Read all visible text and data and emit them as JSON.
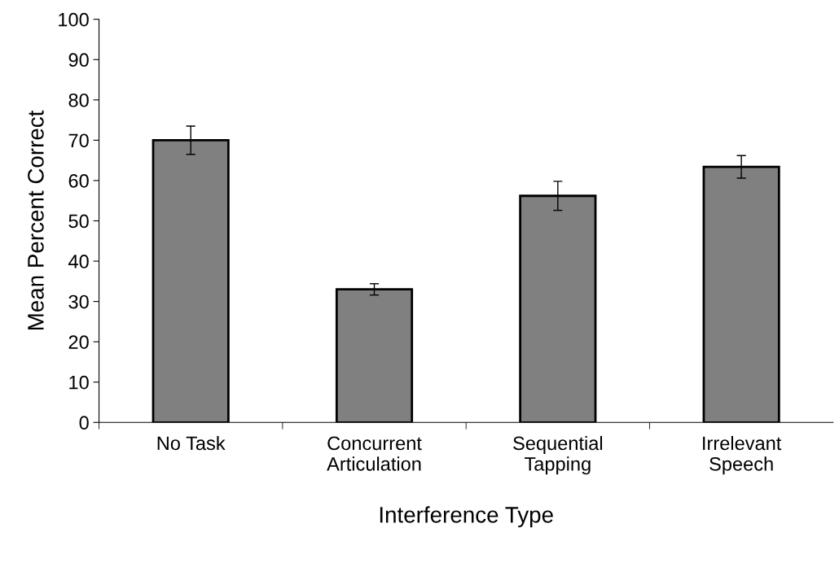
{
  "chart_data": {
    "type": "bar",
    "xlabel": "Interference Type",
    "ylabel": "Mean Percent Correct",
    "categories": [
      "No Task",
      "Concurrent\nArticulation",
      "Sequential\nTapping",
      "Irrelevant\nSpeech"
    ],
    "values": [
      70,
      33,
      56.2,
      63.4
    ],
    "errors": [
      3.5,
      1.4,
      3.6,
      2.8
    ],
    "color": "#808080",
    "ylim": [
      0,
      100
    ],
    "yticks": [
      0,
      10,
      20,
      30,
      40,
      50,
      60,
      70,
      80,
      90,
      100
    ],
    "grid": false,
    "legend": false
  }
}
